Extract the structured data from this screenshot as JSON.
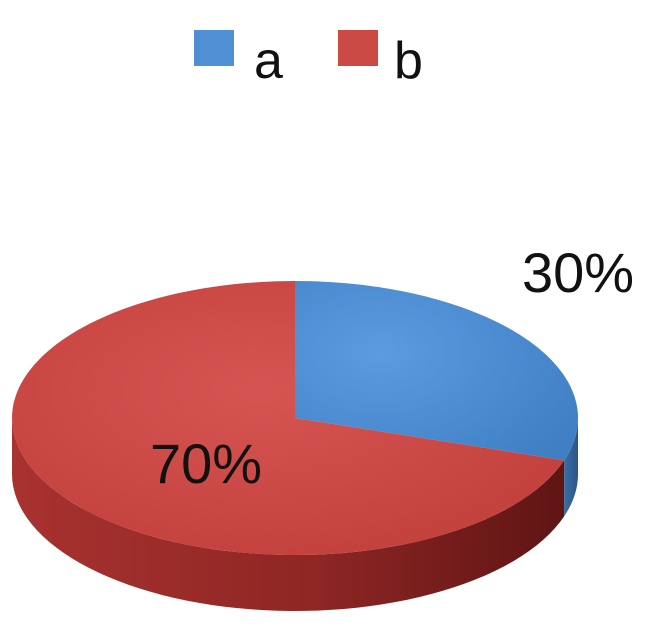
{
  "chart_data": {
    "type": "pie",
    "style": "3d",
    "categories": [
      "a",
      "b"
    ],
    "values": [
      30,
      70
    ],
    "data_labels": [
      "30%",
      "70%"
    ],
    "colors": [
      "#4f8fd4",
      "#cc4a46"
    ],
    "legend": {
      "position": "top",
      "entries": [
        "a",
        "b"
      ]
    }
  }
}
